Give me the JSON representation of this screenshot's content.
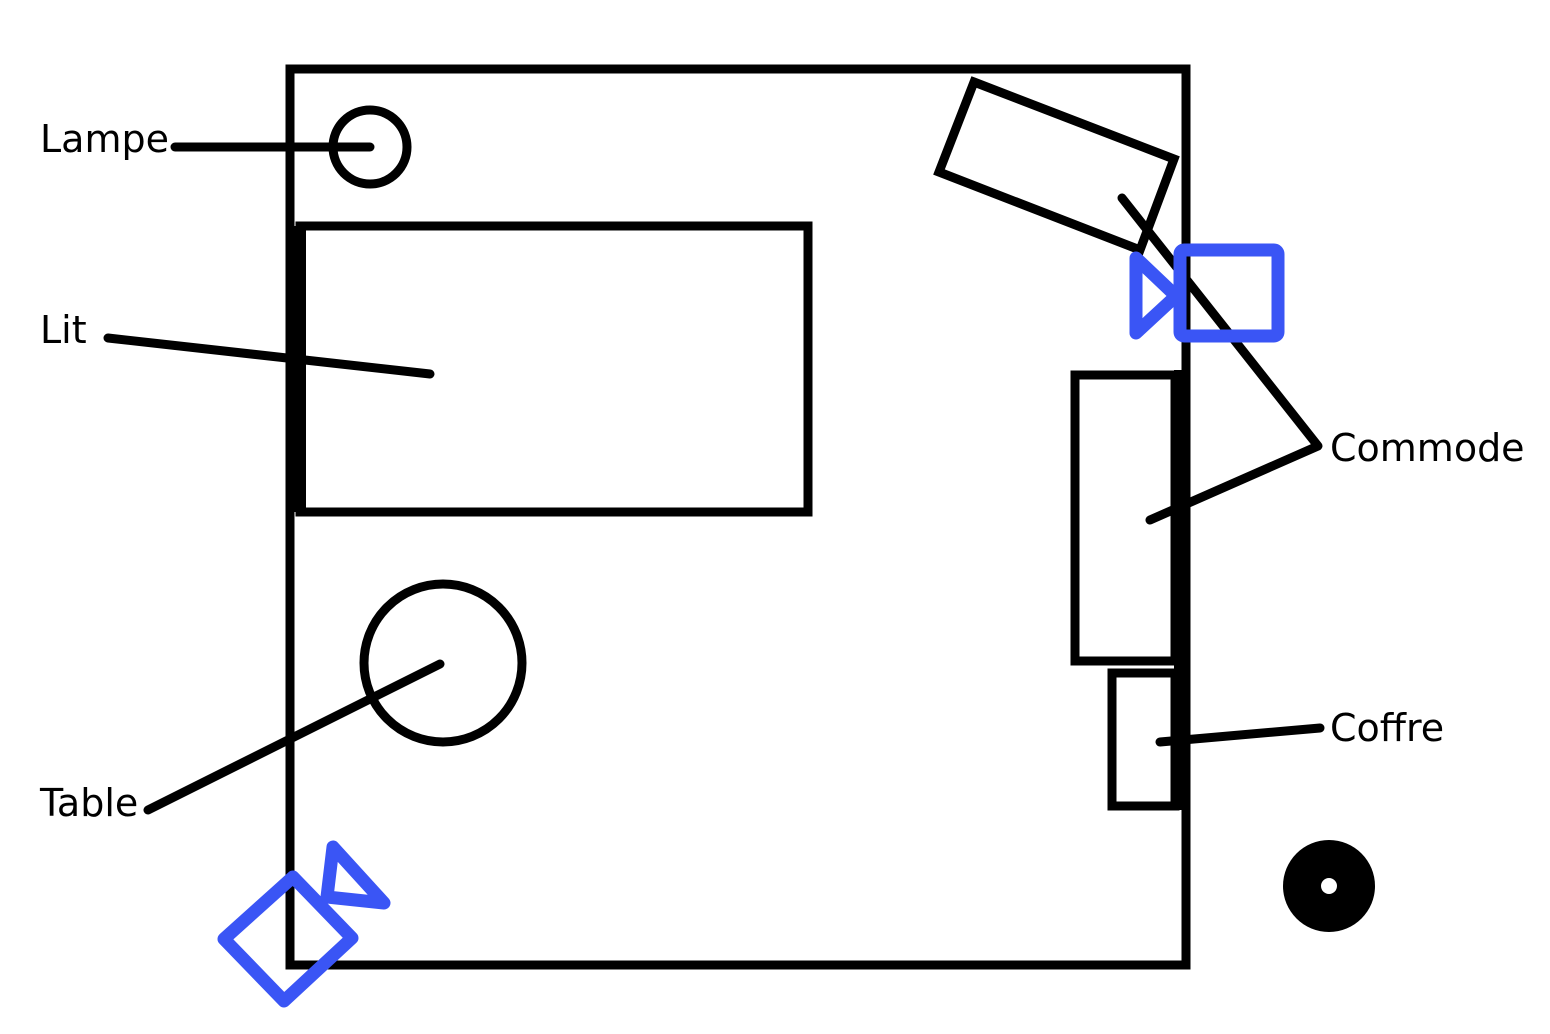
{
  "labels": {
    "lamp": "Lampe",
    "bed": "Lit",
    "table": "Table",
    "dresser": "Commode",
    "chest": "Coffre"
  },
  "icons": {
    "camera": "camera-icon",
    "marker": "position-marker-icon"
  },
  "colors": {
    "ink": "#000000",
    "camera": "#3a55f5",
    "background": "#ffffff"
  }
}
